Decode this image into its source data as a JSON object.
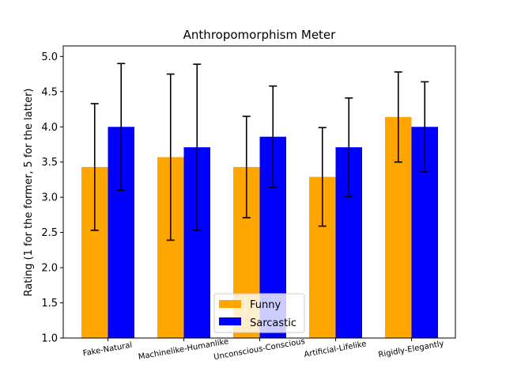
{
  "chart_data": {
    "type": "bar",
    "title": "Anthropomorphism Meter",
    "xlabel": "",
    "ylabel": "Rating (1 for the former, 5 for the latter)",
    "ylim": [
      1.0,
      5.15
    ],
    "yticks": [
      "1.0",
      "1.5",
      "2.0",
      "2.5",
      "3.0",
      "3.5",
      "4.0",
      "4.5",
      "5.0"
    ],
    "categories": [
      "Fake-Natural",
      "Machinelike-Humanlike",
      "Unconscious-Conscious",
      "Artificial-Lifelike",
      "Rigidly-Elegantly"
    ],
    "series": [
      {
        "name": "Funny",
        "color": "#FFA500",
        "values": [
          3.43,
          3.57,
          3.43,
          3.29,
          4.14
        ],
        "errors": [
          0.9,
          1.18,
          0.72,
          0.7,
          0.64
        ]
      },
      {
        "name": "Sarcastic",
        "color": "#0000FF",
        "values": [
          4.0,
          3.71,
          3.86,
          3.71,
          4.0
        ],
        "errors": [
          0.9,
          1.18,
          0.72,
          0.7,
          0.64
        ]
      }
    ],
    "legend": {
      "position": "lower-center"
    },
    "grid": false
  }
}
